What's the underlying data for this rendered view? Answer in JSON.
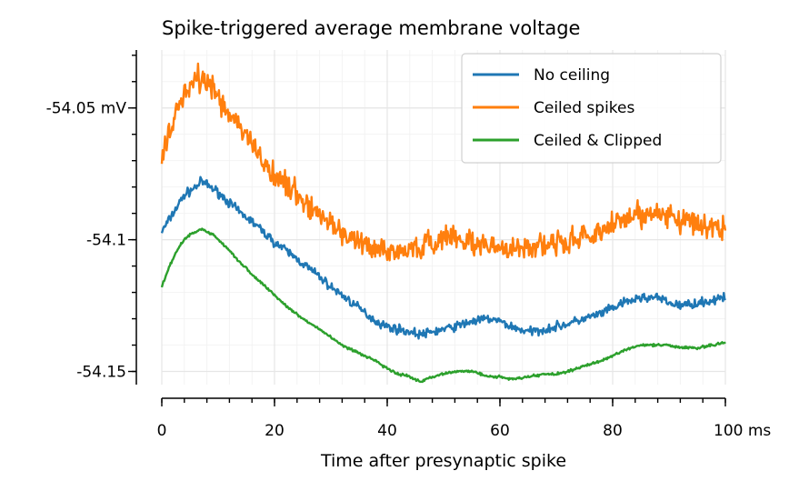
{
  "chart_data": {
    "type": "line",
    "title": "Spike-triggered average membrane voltage",
    "xlabel": "Time after presynaptic spike",
    "ylabel": "",
    "xlim": [
      0,
      100
    ],
    "ylim": [
      -54.155,
      -54.028
    ],
    "x_ticks": [
      {
        "value": 0,
        "label": "0"
      },
      {
        "value": 20,
        "label": "20"
      },
      {
        "value": 40,
        "label": "40"
      },
      {
        "value": 60,
        "label": "60"
      },
      {
        "value": 80,
        "label": "80"
      },
      {
        "value": 100,
        "label": "100 ms"
      }
    ],
    "y_ticks": [
      {
        "value": -54.05,
        "label": "-54.05 mV"
      },
      {
        "value": -54.1,
        "label": "-54.1"
      },
      {
        "value": -54.15,
        "label": "-54.15"
      }
    ],
    "grid": true,
    "legend_position": "top-right",
    "series": [
      {
        "name": "No ceiling",
        "color": "#1f77b4",
        "noise": 0.0025,
        "x": [
          0,
          2,
          4,
          6,
          7,
          8,
          10,
          12,
          14,
          16,
          18,
          20,
          22,
          25,
          28,
          30,
          32,
          35,
          38,
          40,
          42,
          44,
          46,
          48,
          50,
          52,
          55,
          58,
          60,
          62,
          65,
          68,
          70,
          72,
          75,
          78,
          80,
          82,
          85,
          88,
          90,
          92,
          95,
          98,
          100
        ],
        "y": [
          -54.097,
          -54.09,
          -54.083,
          -54.08,
          -54.078,
          -54.079,
          -54.082,
          -54.086,
          -54.09,
          -54.093,
          -54.097,
          -54.101,
          -54.104,
          -54.109,
          -54.114,
          -54.118,
          -54.121,
          -54.126,
          -54.131,
          -54.133,
          -54.134,
          -54.135,
          -54.136,
          -54.135,
          -54.134,
          -54.133,
          -54.131,
          -54.13,
          -54.131,
          -54.133,
          -54.135,
          -54.134,
          -54.133,
          -54.132,
          -54.13,
          -54.128,
          -54.126,
          -54.124,
          -54.122,
          -54.122,
          -54.124,
          -54.125,
          -54.124,
          -54.123,
          -54.122
        ]
      },
      {
        "name": "Ceiled spikes",
        "color": "#ff7f0e",
        "noise": 0.007,
        "x": [
          0,
          2,
          4,
          6,
          7,
          8,
          10,
          12,
          14,
          16,
          18,
          20,
          22,
          25,
          28,
          30,
          32,
          35,
          38,
          40,
          42,
          44,
          46,
          48,
          50,
          52,
          55,
          58,
          60,
          62,
          65,
          68,
          70,
          72,
          75,
          78,
          80,
          82,
          85,
          88,
          90,
          92,
          95,
          98,
          100
        ],
        "y": [
          -54.068,
          -54.055,
          -54.045,
          -54.04,
          -54.038,
          -54.04,
          -54.045,
          -54.052,
          -54.058,
          -54.064,
          -54.07,
          -54.075,
          -54.079,
          -54.085,
          -54.09,
          -54.094,
          -54.097,
          -54.101,
          -54.104,
          -54.105,
          -54.104,
          -54.104,
          -54.103,
          -54.101,
          -54.1,
          -54.1,
          -54.101,
          -54.103,
          -54.104,
          -54.104,
          -54.103,
          -54.102,
          -54.101,
          -54.1,
          -54.099,
          -54.097,
          -54.094,
          -54.092,
          -54.09,
          -54.089,
          -54.09,
          -54.092,
          -54.094,
          -54.095,
          -54.096
        ]
      },
      {
        "name": "Ceiled & Clipped",
        "color": "#2ca02c",
        "noise": 0.0007,
        "x": [
          0,
          1,
          2,
          3,
          4,
          5,
          6,
          7,
          8,
          9,
          10,
          12,
          14,
          16,
          18,
          20,
          22,
          25,
          28,
          30,
          32,
          35,
          38,
          40,
          42,
          44,
          46,
          48,
          50,
          52,
          55,
          58,
          60,
          62,
          65,
          68,
          70,
          72,
          75,
          78,
          80,
          82,
          85,
          88,
          90,
          92,
          95,
          98,
          100
        ],
        "y": [
          -54.118,
          -54.112,
          -54.107,
          -54.103,
          -54.1,
          -54.098,
          -54.097,
          -54.096,
          -54.097,
          -54.098,
          -54.1,
          -54.104,
          -54.109,
          -54.113,
          -54.117,
          -54.121,
          -54.125,
          -54.13,
          -54.134,
          -54.137,
          -54.14,
          -54.143,
          -54.146,
          -54.149,
          -54.151,
          -54.152,
          -54.154,
          -54.152,
          -54.151,
          -54.15,
          -54.15,
          -54.152,
          -54.152,
          -54.153,
          -54.152,
          -54.151,
          -54.151,
          -54.15,
          -54.148,
          -54.146,
          -54.144,
          -54.142,
          -54.14,
          -54.14,
          -54.14,
          -54.141,
          -54.141,
          -54.14,
          -54.139
        ]
      }
    ]
  }
}
